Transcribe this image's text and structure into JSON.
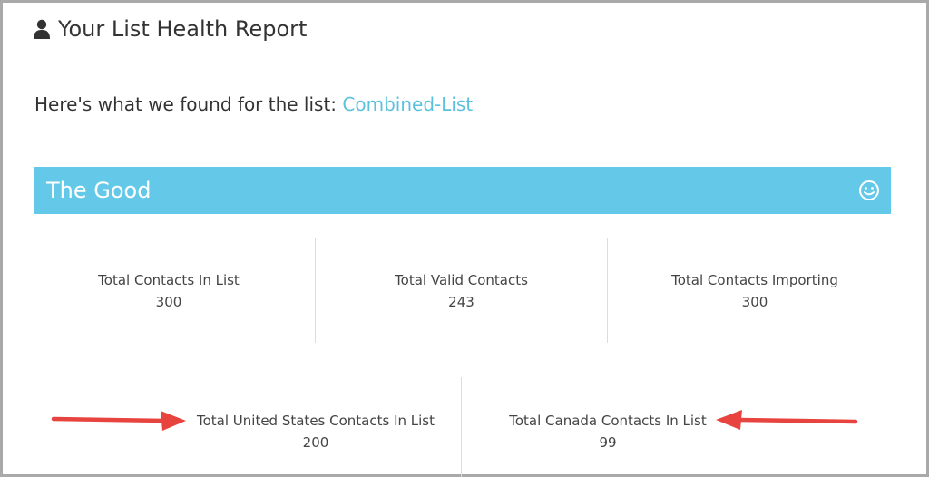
{
  "header": {
    "title": "Your List Health Report",
    "icon": "user-icon"
  },
  "intro": {
    "prefix": "Here's what we found for the list:",
    "list_name": "Combined-List"
  },
  "good_section": {
    "title": "The Good",
    "icon": "smiley-icon",
    "color": "#64c8e8"
  },
  "stats_row1": [
    {
      "label": "Total Contacts In List",
      "value": "300"
    },
    {
      "label": "Total Valid Contacts",
      "value": "243"
    },
    {
      "label": "Total Contacts Importing",
      "value": "300"
    }
  ],
  "stats_row2": [
    {
      "label": "Total United States Contacts In List",
      "value": "200"
    },
    {
      "label": "Total Canada Contacts In List",
      "value": "99"
    }
  ],
  "annotation": {
    "arrow_color": "#e8443f"
  }
}
